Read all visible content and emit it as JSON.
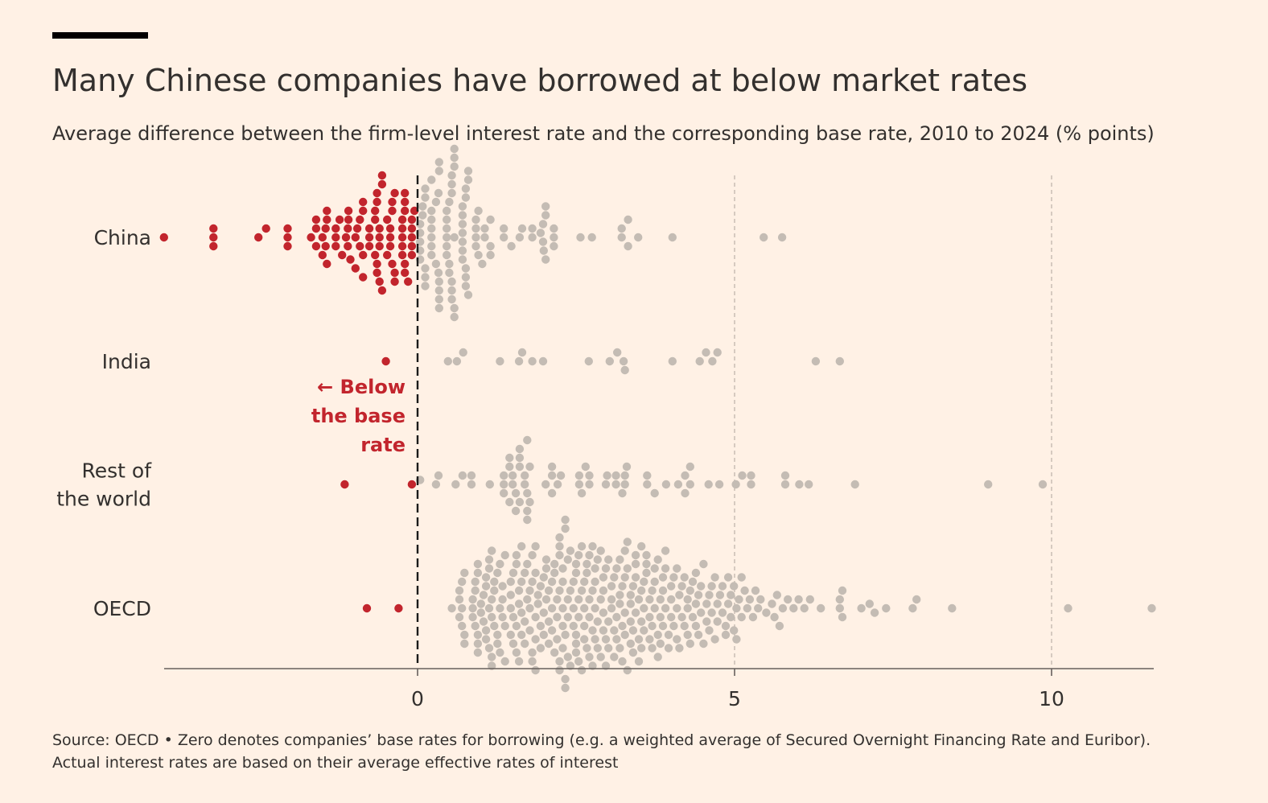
{
  "header": {
    "title": "Many Chinese companies have borrowed at below market rates",
    "subtitle": "Average difference between the firm-level interest rate and the corresponding base rate, 2010 to 2024 (% points)"
  },
  "footer": {
    "source_line1": "Source: OECD • Zero denotes companies’ base rates for borrowing (e.g. a weighted average of Secured Overnight Financing Rate and Euribor).",
    "source_line2": "Actual interest rates are based on their average effective rates of interest"
  },
  "colors": {
    "background": "#fff1e5",
    "below": "#c2252d",
    "above": "#c4bcb4",
    "text": "#33302e",
    "axis": "#66605c",
    "gridline": "#ccc1b7",
    "zero_line": "#1a1a1a"
  },
  "chart_data": {
    "type": "scatter",
    "subtype": "beeswarm",
    "xlim": [
      -4,
      11.6
    ],
    "xticks": [
      0,
      5,
      10
    ],
    "xtick_labels": [
      "0",
      "5",
      "10"
    ],
    "gridlines": [
      5,
      10
    ],
    "zero_line": 0,
    "annotation": {
      "lines": [
        "← Below",
        "the base",
        "rate"
      ]
    },
    "series": [
      {
        "name": "China",
        "label_lines": [
          "China"
        ],
        "values": [
          -4.0,
          -3.22,
          -3.22,
          -3.22,
          -2.51,
          -2.39,
          -2.05,
          -2.05,
          -2.05,
          -1.68,
          -1.6,
          -1.6,
          -1.6,
          -1.5,
          -1.5,
          -1.45,
          -1.45,
          -1.43,
          -1.43,
          -1.43,
          -1.29,
          -1.29,
          -1.29,
          -1.23,
          -1.19,
          -1.13,
          -1.1,
          -1.1,
          -1.09,
          -1.09,
          -1.06,
          -0.98,
          -0.98,
          -0.95,
          -0.91,
          -0.91,
          -0.86,
          -0.86,
          -0.86,
          -0.86,
          -0.76,
          -0.76,
          -0.76,
          -0.67,
          -0.67,
          -0.67,
          -0.64,
          -0.64,
          -0.64,
          -0.64,
          -0.6,
          -0.6,
          -0.6,
          -0.6,
          -0.56,
          -0.56,
          -0.56,
          -0.48,
          -0.48,
          -0.43,
          -0.43,
          -0.43,
          -0.4,
          -0.4,
          -0.4,
          -0.36,
          -0.36,
          -0.36,
          -0.24,
          -0.24,
          -0.24,
          -0.24,
          -0.24,
          -0.2,
          -0.2,
          -0.2,
          -0.2,
          -0.2,
          -0.15,
          -0.09,
          -0.09,
          -0.09,
          -0.09,
          -0.09,
          -0.05,
          0.04,
          0.04,
          0.04,
          0.04,
          0.04,
          0.08,
          0.08,
          0.12,
          0.12,
          0.12,
          0.12,
          0.12,
          0.22,
          0.22,
          0.22,
          0.22,
          0.22,
          0.22,
          0.22,
          0.29,
          0.29,
          0.33,
          0.33,
          0.34,
          0.34,
          0.34,
          0.34,
          0.34,
          0.34,
          0.46,
          0.46,
          0.46,
          0.46,
          0.46,
          0.46,
          0.5,
          0.5,
          0.5,
          0.54,
          0.54,
          0.54,
          0.54,
          0.54,
          0.54,
          0.58,
          0.58,
          0.58,
          0.58,
          0.58,
          0.58,
          0.71,
          0.71,
          0.71,
          0.71,
          0.71,
          0.71,
          0.71,
          0.76,
          0.76,
          0.76,
          0.76,
          0.76,
          0.8,
          0.8,
          0.8,
          0.92,
          0.92,
          0.92,
          0.92,
          0.96,
          0.96,
          1.02,
          1.06,
          1.06,
          1.15,
          1.15,
          1.15,
          1.36,
          1.36,
          1.48,
          1.61,
          1.65,
          1.81,
          1.81,
          1.94,
          1.98,
          1.98,
          1.99,
          2.02,
          2.02,
          2.02,
          2.15,
          2.15,
          2.15,
          2.57,
          2.75,
          3.22,
          3.22,
          3.32,
          3.32,
          3.48,
          4.02,
          5.46,
          5.75
        ]
      },
      {
        "name": "India",
        "label_lines": [
          "India"
        ],
        "values": [
          -0.5,
          0.48,
          0.62,
          0.72,
          1.3,
          1.6,
          1.65,
          1.81,
          1.98,
          2.7,
          3.03,
          3.15,
          3.25,
          3.27,
          4.02,
          4.45,
          4.55,
          4.65,
          4.73,
          6.28,
          6.66
        ]
      },
      {
        "name": "Rest of the world",
        "label_lines": [
          "Rest of",
          "the world"
        ],
        "values": [
          -1.15,
          -0.09,
          0.04,
          0.29,
          0.33,
          0.6,
          0.71,
          0.85,
          0.85,
          1.14,
          1.36,
          1.36,
          1.36,
          1.45,
          1.45,
          1.45,
          1.5,
          1.5,
          1.55,
          1.55,
          1.61,
          1.61,
          1.61,
          1.61,
          1.69,
          1.69,
          1.73,
          1.73,
          1.73,
          1.73,
          1.77,
          1.77,
          2.02,
          2.12,
          2.12,
          2.12,
          2.21,
          2.26,
          2.55,
          2.55,
          2.59,
          2.65,
          2.71,
          2.71,
          2.97,
          2.99,
          3.13,
          3.13,
          3.23,
          3.27,
          3.27,
          3.3,
          3.62,
          3.62,
          3.74,
          3.92,
          4.11,
          4.22,
          4.22,
          4.3,
          4.3,
          4.59,
          4.76,
          5.02,
          5.12,
          5.26,
          5.26,
          5.8,
          5.8,
          6.02,
          6.17,
          6.9,
          9.0,
          9.86
        ]
      },
      {
        "name": "OECD",
        "label_lines": [
          "OECD"
        ],
        "values": [
          -0.8,
          -0.3,
          0.54,
          0.66,
          0.66,
          0.66,
          0.7,
          0.7,
          0.7,
          0.74,
          0.74,
          0.74,
          0.87,
          0.87,
          0.87,
          0.91,
          0.91,
          0.91,
          0.95,
          0.95,
          0.95,
          0.95,
          0.95,
          1.0,
          1.0,
          1.04,
          1.04,
          1.08,
          1.08,
          1.08,
          1.08,
          1.13,
          1.13,
          1.13,
          1.13,
          1.17,
          1.17,
          1.17,
          1.17,
          1.17,
          1.21,
          1.21,
          1.21,
          1.26,
          1.26,
          1.26,
          1.3,
          1.3,
          1.3,
          1.34,
          1.34,
          1.34,
          1.38,
          1.38,
          1.38,
          1.47,
          1.47,
          1.47,
          1.47,
          1.51,
          1.51,
          1.51,
          1.56,
          1.56,
          1.56,
          1.56,
          1.6,
          1.6,
          1.6,
          1.64,
          1.64,
          1.64,
          1.64,
          1.69,
          1.69,
          1.69,
          1.73,
          1.73,
          1.77,
          1.77,
          1.77,
          1.81,
          1.81,
          1.81,
          1.81,
          1.86,
          1.86,
          1.86,
          1.86,
          1.86,
          1.9,
          1.9,
          1.94,
          1.94,
          1.94,
          1.99,
          1.99,
          1.99,
          2.03,
          2.03,
          2.03,
          2.07,
          2.07,
          2.07,
          2.12,
          2.12,
          2.12,
          2.16,
          2.16,
          2.16,
          2.2,
          2.2,
          2.2,
          2.24,
          2.24,
          2.24,
          2.24,
          2.24,
          2.24,
          2.29,
          2.29,
          2.29,
          2.29,
          2.29,
          2.33,
          2.33,
          2.33,
          2.33,
          2.33,
          2.37,
          2.37,
          2.37,
          2.37,
          2.41,
          2.41,
          2.41,
          2.46,
          2.46,
          2.46,
          2.5,
          2.5,
          2.5,
          2.5,
          2.5,
          2.54,
          2.54,
          2.54,
          2.54,
          2.59,
          2.59,
          2.59,
          2.63,
          2.63,
          2.63,
          2.63,
          2.67,
          2.67,
          2.67,
          2.71,
          2.71,
          2.71,
          2.71,
          2.76,
          2.76,
          2.76,
          2.76,
          2.8,
          2.8,
          2.8,
          2.8,
          2.84,
          2.84,
          2.84,
          2.89,
          2.89,
          2.89,
          2.93,
          2.93,
          2.93,
          2.93,
          2.97,
          2.97,
          2.97,
          3.01,
          3.01,
          3.01,
          3.06,
          3.06,
          3.06,
          3.1,
          3.1,
          3.1,
          3.14,
          3.14,
          3.14,
          3.19,
          3.19,
          3.19,
          3.19,
          3.23,
          3.23,
          3.23,
          3.27,
          3.27,
          3.27,
          3.27,
          3.31,
          3.31,
          3.31,
          3.36,
          3.36,
          3.36,
          3.36,
          3.4,
          3.4,
          3.4,
          3.44,
          3.44,
          3.44,
          3.44,
          3.49,
          3.49,
          3.49,
          3.53,
          3.53,
          3.53,
          3.53,
          3.57,
          3.57,
          3.57,
          3.61,
          3.61,
          3.61,
          3.66,
          3.66,
          3.66,
          3.7,
          3.7,
          3.7,
          3.74,
          3.74,
          3.74,
          3.79,
          3.79,
          3.79,
          3.83,
          3.83,
          3.83,
          3.87,
          3.87,
          3.87,
          3.91,
          3.91,
          3.91,
          3.96,
          3.96,
          4.0,
          4.0,
          4.0,
          4.04,
          4.04,
          4.09,
          4.09,
          4.09,
          4.13,
          4.13,
          4.17,
          4.17,
          4.21,
          4.21,
          4.26,
          4.26,
          4.26,
          4.3,
          4.3,
          4.34,
          4.34,
          4.39,
          4.39,
          4.39,
          4.43,
          4.43,
          4.47,
          4.47,
          4.51,
          4.51,
          4.56,
          4.56,
          4.6,
          4.6,
          4.64,
          4.64,
          4.69,
          4.69,
          4.73,
          4.73,
          4.77,
          4.81,
          4.81,
          4.86,
          4.86,
          4.9,
          4.9,
          4.94,
          4.94,
          4.99,
          4.99,
          5.03,
          5.03,
          5.07,
          5.11,
          5.11,
          5.16,
          5.2,
          5.24,
          5.29,
          5.33,
          5.37,
          5.41,
          5.5,
          5.59,
          5.63,
          5.67,
          5.71,
          5.76,
          5.84,
          5.93,
          6.01,
          6.1,
          6.19,
          6.36,
          6.66,
          6.66,
          6.7,
          6.7,
          7.0,
          7.13,
          7.21,
          7.39,
          7.81,
          7.87,
          8.43,
          10.26,
          11.58
        ]
      }
    ]
  }
}
